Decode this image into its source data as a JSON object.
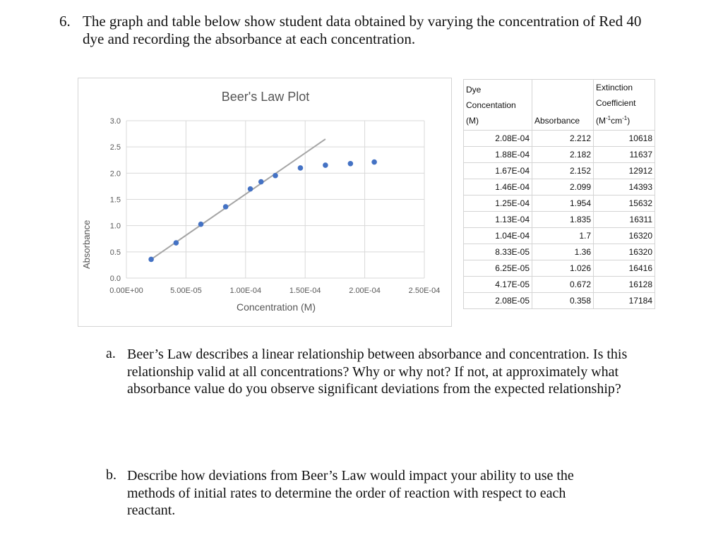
{
  "question": {
    "number": "6.",
    "text": "The graph and table below show student data obtained by varying the concentration of Red 40 dye and recording the absorbance at each concentration."
  },
  "chart_data": {
    "type": "scatter",
    "title": "Beer's Law Plot",
    "xlabel": "Concentration (M)",
    "ylabel": "Absorbance",
    "xlim": [
      0,
      0.00025
    ],
    "ylim": [
      0,
      3.0
    ],
    "x_tick_labels": [
      "0.00E+00",
      "5.00E-05",
      "1.00E-04",
      "1.50E-04",
      "2.00E-04",
      "2.50E-04"
    ],
    "x_ticks": [
      0,
      5e-05,
      0.0001,
      0.00015,
      0.0002,
      0.00025
    ],
    "y_tick_labels": [
      "0.0",
      "0.5",
      "1.0",
      "1.5",
      "2.0",
      "2.5",
      "3.0"
    ],
    "y_ticks": [
      0,
      0.5,
      1.0,
      1.5,
      2.0,
      2.5,
      3.0
    ],
    "grid": true,
    "series": [
      {
        "x": [
          2.08e-05,
          4.17e-05,
          6.25e-05,
          8.33e-05,
          0.000104,
          0.000113,
          0.000125,
          0.000146,
          0.000167,
          0.000188,
          0.000208
        ],
        "y": [
          0.358,
          0.672,
          1.026,
          1.36,
          1.7,
          1.835,
          1.954,
          2.099,
          2.152,
          2.182,
          2.212
        ],
        "color": "#4472C4"
      }
    ],
    "trendline": {
      "x": [
        2.08e-05,
        0.000167
      ],
      "y": [
        0.358,
        2.65
      ],
      "color": "#A5A5A5"
    }
  },
  "table": {
    "headers": {
      "conc": [
        "Dye",
        "Concentation",
        "(M)"
      ],
      "abs": "Absorbance",
      "ext": [
        "Extinction",
        "Coefficient"
      ],
      "ext_unit": {
        "pre": "(M",
        "sup1": "-1",
        "mid": "cm",
        "sup2": "-1",
        "post": ")"
      }
    },
    "rows": [
      [
        "2.08E-04",
        "2.212",
        "10618"
      ],
      [
        "1.88E-04",
        "2.182",
        "11637"
      ],
      [
        "1.67E-04",
        "2.152",
        "12912"
      ],
      [
        "1.46E-04",
        "2.099",
        "14393"
      ],
      [
        "1.25E-04",
        "1.954",
        "15632"
      ],
      [
        "1.13E-04",
        "1.835",
        "16311"
      ],
      [
        "1.04E-04",
        "1.7",
        "16320"
      ],
      [
        "8.33E-05",
        "1.36",
        "16320"
      ],
      [
        "6.25E-05",
        "1.026",
        "16416"
      ],
      [
        "4.17E-05",
        "0.672",
        "16128"
      ],
      [
        "2.08E-05",
        "0.358",
        "17184"
      ]
    ]
  },
  "parts": {
    "a": {
      "letter": "a.",
      "text": "Beer’s Law describes a linear relationship between absorbance and concentration. Is this relationship valid at all concentrations? Why or why not? If not, at approximately what absorbance value do you observe significant deviations from the expected relationship?"
    },
    "b": {
      "letter": "b.",
      "text": "Describe how deviations from Beer’s Law would impact your ability to use the methods of initial rates to determine the order of reaction with respect to each reactant."
    }
  }
}
